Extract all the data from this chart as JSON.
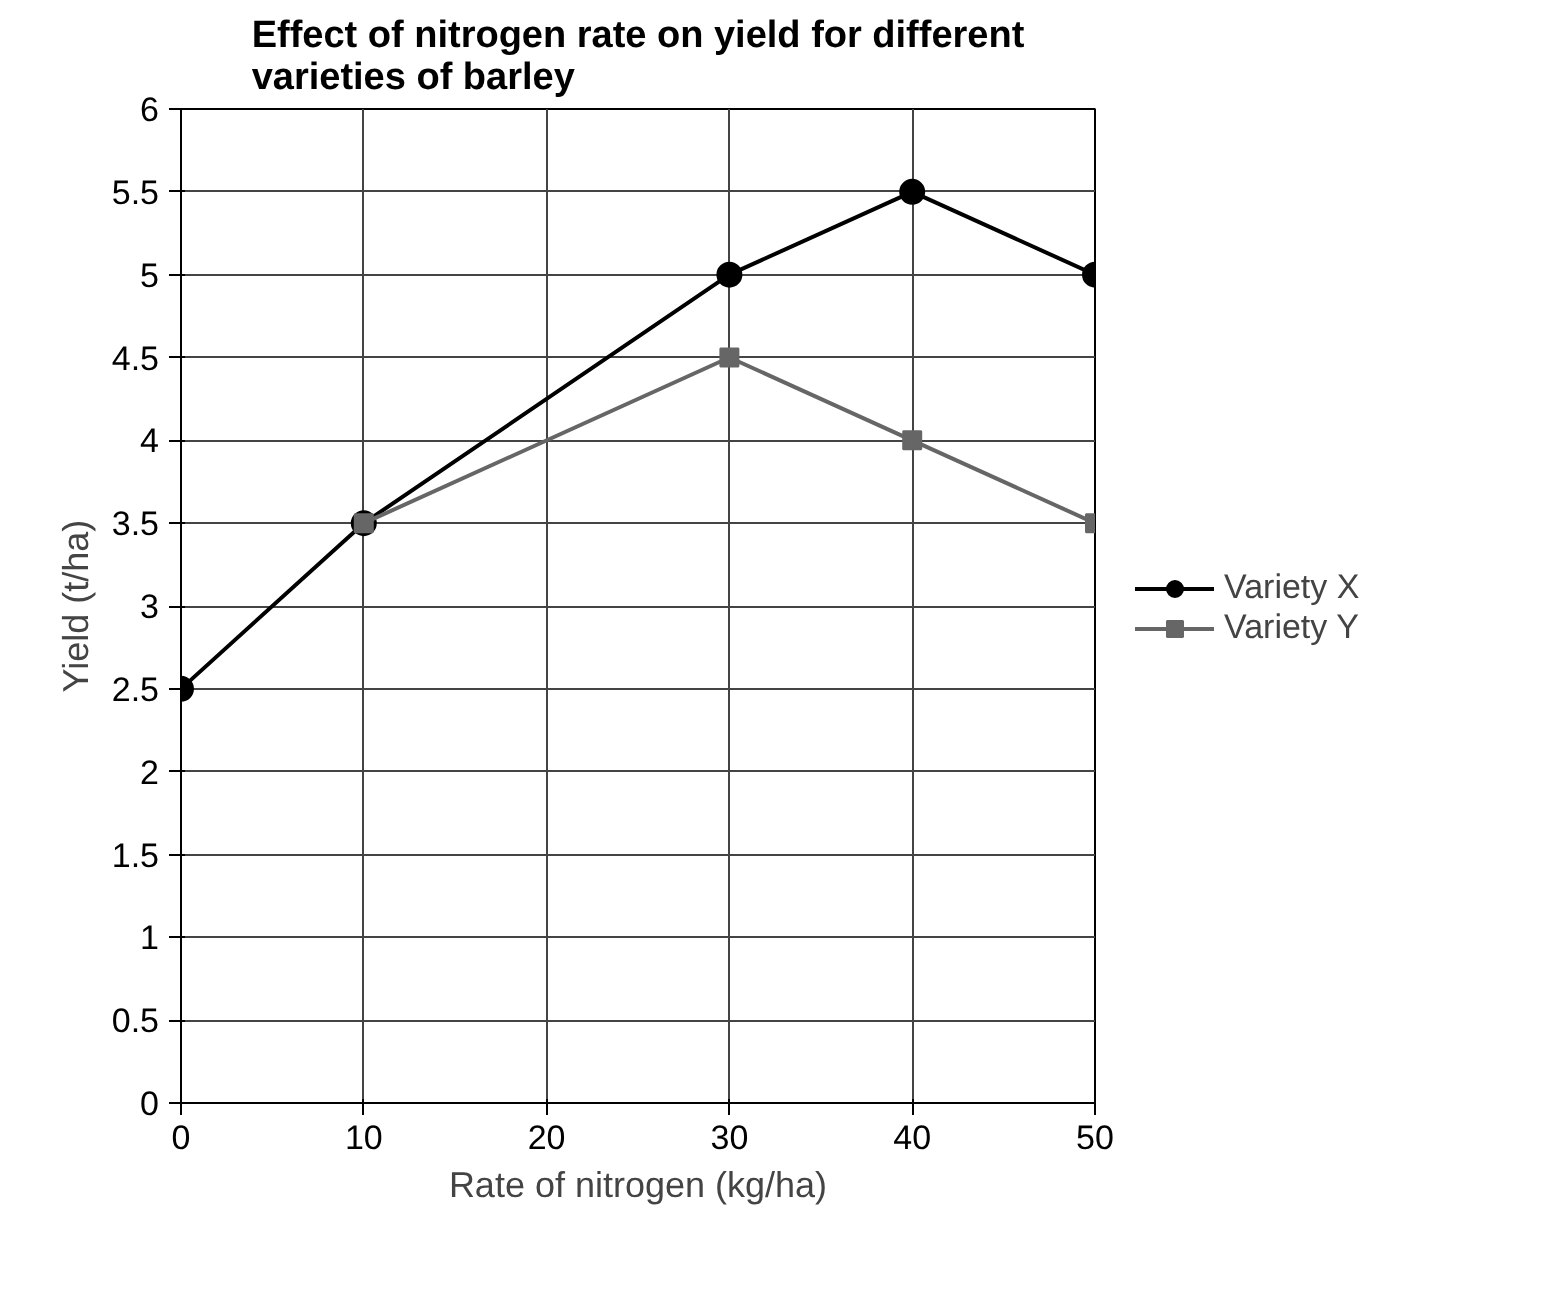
{
  "chart_data": {
    "type": "line",
    "title": "Effect of nitrogen rate on yield for different varieties of barley",
    "xlabel": "Rate of nitrogen (kg/ha)",
    "ylabel": "Yield (t/ha)",
    "series": [
      {
        "name": "Variety X",
        "color": "#000000",
        "marker": "circle",
        "x": [
          0,
          10,
          30,
          40,
          50
        ],
        "values": [
          2.5,
          3.5,
          5,
          5.5,
          5
        ]
      },
      {
        "name": "Variety Y",
        "color": "#666666",
        "marker": "square",
        "x": [
          10,
          30,
          40,
          50
        ],
        "values": [
          3.5,
          4.5,
          4,
          3.5
        ]
      }
    ],
    "xlim": [
      0,
      50
    ],
    "xticks": [
      0,
      10,
      20,
      30,
      40,
      50
    ],
    "ylim": [
      0,
      6
    ],
    "yticks": [
      0,
      0.5,
      1,
      1.5,
      2,
      2.5,
      3,
      3.5,
      4,
      4.5,
      5,
      5.5,
      6
    ],
    "grid": true,
    "legend": "right",
    "line_style": "solid"
  }
}
